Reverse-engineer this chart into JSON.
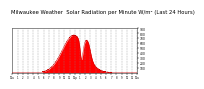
{
  "title": "Milwaukee Weather  Solar Radiation per Minute W/m² (Last 24 Hours)",
  "title_fontsize": 3.8,
  "background_color": "#ffffff",
  "plot_bg_color": "#ffffff",
  "fill_color": "#ff0000",
  "line_color": "#cc0000",
  "ylim": [
    0,
    900
  ],
  "yticks": [
    100,
    200,
    300,
    400,
    500,
    600,
    700,
    800,
    900
  ],
  "grid_color": "#888888",
  "num_points": 1440,
  "peak_hour": 11.8,
  "peak_value": 760,
  "x_tick_labels": [
    "12a",
    "1",
    "2",
    "3",
    "4",
    "5",
    "6",
    "7",
    "8",
    "9",
    "10",
    "11",
    "12p",
    "1",
    "2",
    "3",
    "4",
    "5",
    "6",
    "7",
    "8",
    "9",
    "10",
    "11",
    "12a"
  ],
  "x_tick_positions": [
    0,
    1,
    2,
    3,
    4,
    5,
    6,
    7,
    8,
    9,
    10,
    11,
    12,
    13,
    14,
    15,
    16,
    17,
    18,
    19,
    20,
    21,
    22,
    23,
    24
  ]
}
